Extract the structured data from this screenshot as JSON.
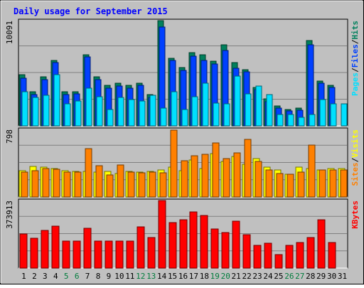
{
  "chart_data": {
    "type": "bar",
    "title": "Daily usage for September 2015",
    "days": [
      "1",
      "2",
      "3",
      "4",
      "5",
      "6",
      "7",
      "8",
      "9",
      "10",
      "11",
      "12",
      "13",
      "14",
      "15",
      "16",
      "17",
      "18",
      "19",
      "20",
      "21",
      "22",
      "23",
      "24",
      "25",
      "26",
      "27",
      "28",
      "29",
      "30",
      "31"
    ],
    "weekend_days": [
      "5",
      "6",
      "12",
      "13",
      "19",
      "20",
      "26",
      "27"
    ],
    "colors": {
      "background": "#c0c0c0",
      "title": "#0000ff",
      "weekday_label": "#000000",
      "weekend_label": "#007c3c",
      "hits": "#00805c",
      "files": "#0040ff",
      "pages": "#00e0ff",
      "visits": "#ffff00",
      "sites": "#ff8000",
      "kbytes": "#ff0000",
      "legend_separator": "#000000"
    },
    "panels": [
      {
        "id": "hits-files-pages",
        "ymax": 10091,
        "ymax_label": "10091",
        "legend": [
          "Pages",
          "Files",
          "Hits"
        ],
        "series": [
          {
            "name": "Hits",
            "values": [
              4900,
              3300,
              4700,
              6300,
              3300,
              3300,
              6800,
              4700,
              3900,
              4100,
              3900,
              4100,
              3000,
              10091,
              6500,
              5600,
              7000,
              6800,
              6200,
              7800,
              6100,
              5400,
              3700,
              2600,
              1900,
              1600,
              1700,
              8200,
              4300,
              3900,
              0
            ]
          },
          {
            "name": "Files",
            "values": [
              4600,
              3000,
              4400,
              6100,
              3000,
              3100,
              6600,
              4400,
              3600,
              3800,
              3600,
              3900,
              2700,
              9500,
              6300,
              5300,
              6700,
              6300,
              5900,
              7200,
              5500,
              5200,
              3500,
              2300,
              1700,
              1400,
              1500,
              7800,
              4100,
              3700,
              0
            ]
          },
          {
            "name": "Pages",
            "values": [
              3300,
              2700,
              2900,
              4900,
              2100,
              2400,
              3600,
              2800,
              1600,
              2700,
              2500,
              2400,
              2900,
              1700,
              3300,
              1600,
              2800,
              4100,
              2200,
              2100,
              4800,
              3100,
              3800,
              3000,
              1100,
              1100,
              800,
              1100,
              2500,
              2100,
              2100
            ]
          }
        ]
      },
      {
        "id": "visits-sites",
        "ymax": 798,
        "ymax_label": "798",
        "legend": [
          "Sites",
          "Visits"
        ],
        "series": [
          {
            "name": "Visits",
            "values": [
              310,
              360,
              350,
              340,
              310,
              300,
              300,
              290,
              300,
              280,
              300,
              290,
              300,
              320,
              350,
              310,
              440,
              340,
              510,
              420,
              480,
              390,
              450,
              350,
              320,
              270,
              350,
              340,
              320,
              340,
              340
            ]
          },
          {
            "name": "Sites",
            "values": [
              295,
              310,
              340,
              330,
              290,
              290,
              570,
              370,
              260,
              380,
              290,
              285,
              290,
              284,
              790,
              430,
              490,
              500,
              640,
              450,
              520,
              680,
              420,
              320,
              280,
              270,
              290,
              610,
              320,
              320,
              320
            ]
          }
        ]
      },
      {
        "id": "kbytes",
        "ymax": 373913,
        "ymax_label": "373913",
        "legend": [
          "KBytes"
        ],
        "series": [
          {
            "name": "KBytes",
            "values": [
              190000,
              165000,
              210000,
              232000,
              150000,
              150000,
              220000,
              148000,
              148000,
              148000,
              148000,
              230000,
              168000,
              373913,
              252000,
              268000,
              312000,
              290000,
              218000,
              198000,
              258000,
              185000,
              125000,
              138000,
              75000,
              125000,
              140000,
              170000,
              266000,
              140000,
              0
            ]
          }
        ]
      }
    ]
  }
}
